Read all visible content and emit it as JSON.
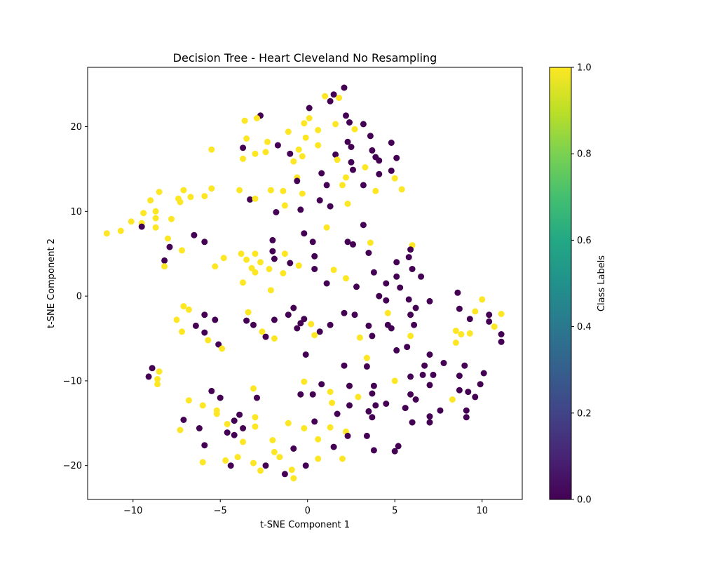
{
  "chart_data": {
    "type": "scatter",
    "title": "Decision Tree - Heart Cleveland No Resampling",
    "xlabel": "t-SNE Component 1",
    "ylabel": "t-SNE Component 2",
    "xlim": [
      -12.6,
      12.3
    ],
    "ylim": [
      -24.0,
      27.0
    ],
    "xticks": [
      -10,
      -5,
      0,
      5,
      10
    ],
    "yticks": [
      -20,
      -10,
      0,
      10,
      20
    ],
    "grid": false,
    "colorbar": {
      "label": "Class Labels",
      "range": [
        0.0,
        1.0
      ],
      "ticks": [
        "0.0",
        "0.2",
        "0.4",
        "0.6",
        "0.8",
        "1.0"
      ],
      "colormap": "viridis"
    },
    "class_colors": {
      "0": "#440154",
      "1": "#fde725"
    },
    "points": [
      [
        1.0,
        23.6,
        1
      ],
      [
        1.5,
        23.8,
        0
      ],
      [
        2.1,
        24.6,
        0
      ],
      [
        1.3,
        23.0,
        0
      ],
      [
        1.8,
        23.4,
        1
      ],
      [
        -2.7,
        21.3,
        0
      ],
      [
        -3.6,
        20.7,
        1
      ],
      [
        -2.9,
        21.0,
        1
      ],
      [
        -1.1,
        19.4,
        1
      ],
      [
        -0.2,
        20.4,
        1
      ],
      [
        0.1,
        21.0,
        1
      ],
      [
        0.6,
        19.6,
        1
      ],
      [
        0.1,
        22.2,
        0
      ],
      [
        2.2,
        21.3,
        0
      ],
      [
        2.4,
        20.5,
        0
      ],
      [
        1.6,
        20.3,
        1
      ],
      [
        3.2,
        20.3,
        0
      ],
      [
        2.7,
        19.7,
        1
      ],
      [
        3.6,
        18.9,
        0
      ],
      [
        4.8,
        18.1,
        0
      ],
      [
        -3.5,
        18.6,
        1
      ],
      [
        -2.3,
        18.2,
        1
      ],
      [
        -1.7,
        17.8,
        0
      ],
      [
        -0.5,
        17.3,
        1
      ],
      [
        -0.1,
        18.7,
        1
      ],
      [
        0.6,
        17.8,
        1
      ],
      [
        2.3,
        18.2,
        0
      ],
      [
        2.5,
        17.6,
        0
      ],
      [
        3.7,
        17.2,
        0
      ],
      [
        3.9,
        16.4,
        0
      ],
      [
        -5.5,
        17.3,
        1
      ],
      [
        -3.7,
        17.5,
        0
      ],
      [
        -3.0,
        16.8,
        1
      ],
      [
        -2.4,
        17.0,
        1
      ],
      [
        -1.0,
        16.8,
        0
      ],
      [
        -0.8,
        15.9,
        1
      ],
      [
        -0.3,
        16.5,
        1
      ],
      [
        1.6,
        16.7,
        0
      ],
      [
        1.7,
        16.1,
        1
      ],
      [
        2.5,
        15.8,
        0
      ],
      [
        4.1,
        16.0,
        0
      ],
      [
        5.1,
        16.3,
        0
      ],
      [
        -3.7,
        16.2,
        1
      ],
      [
        0.8,
        14.5,
        0
      ],
      [
        2.6,
        14.9,
        0
      ],
      [
        3.3,
        15.2,
        1
      ],
      [
        4.1,
        14.4,
        0
      ],
      [
        4.8,
        14.8,
        0
      ],
      [
        -0.6,
        14.0,
        1
      ],
      [
        -0.6,
        13.6,
        0
      ],
      [
        1.1,
        13.1,
        0
      ],
      [
        2.0,
        13.1,
        1
      ],
      [
        2.2,
        14.0,
        1
      ],
      [
        3.2,
        13.1,
        0
      ],
      [
        5.0,
        13.9,
        1
      ],
      [
        5.4,
        12.6,
        1
      ],
      [
        -8.5,
        12.3,
        1
      ],
      [
        -7.1,
        12.5,
        1
      ],
      [
        -6.7,
        11.7,
        1
      ],
      [
        -7.4,
        11.5,
        1
      ],
      [
        -7.3,
        11.1,
        1
      ],
      [
        -5.9,
        11.8,
        1
      ],
      [
        -5.5,
        12.7,
        1
      ],
      [
        -3.9,
        12.5,
        1
      ],
      [
        -3.3,
        11.4,
        0
      ],
      [
        -3.0,
        11.5,
        1
      ],
      [
        -2.1,
        12.5,
        1
      ],
      [
        -1.4,
        12.4,
        1
      ],
      [
        -0.3,
        12.1,
        1
      ],
      [
        3.9,
        12.4,
        1
      ],
      [
        -9.0,
        11.3,
        1
      ],
      [
        -8.7,
        10.0,
        1
      ],
      [
        -9.4,
        9.8,
        1
      ],
      [
        -8.7,
        9.2,
        1
      ],
      [
        -10.1,
        8.8,
        1
      ],
      [
        -9.5,
        8.6,
        1
      ],
      [
        -9.5,
        8.2,
        0
      ],
      [
        -8.7,
        8.1,
        1
      ],
      [
        -7.8,
        9.1,
        1
      ],
      [
        -11.5,
        7.4,
        1
      ],
      [
        -10.7,
        7.7,
        1
      ],
      [
        -1.8,
        9.9,
        0
      ],
      [
        -1.3,
        10.7,
        1
      ],
      [
        -0.4,
        10.2,
        0
      ],
      [
        0.7,
        11.3,
        0
      ],
      [
        1.3,
        10.6,
        0
      ],
      [
        2.3,
        10.9,
        1
      ],
      [
        1.1,
        8.1,
        1
      ],
      [
        3.2,
        8.4,
        0
      ],
      [
        -6.5,
        7.2,
        0
      ],
      [
        -5.9,
        6.4,
        0
      ],
      [
        -8.0,
        6.8,
        1
      ],
      [
        -7.9,
        5.8,
        0
      ],
      [
        -7.2,
        5.4,
        1
      ],
      [
        -8.2,
        4.2,
        0
      ],
      [
        -8.2,
        3.5,
        1
      ],
      [
        -2.0,
        6.6,
        0
      ],
      [
        -0.2,
        7.4,
        0
      ],
      [
        0.3,
        6.4,
        0
      ],
      [
        2.3,
        6.4,
        0
      ],
      [
        2.6,
        6.1,
        0
      ],
      [
        3.6,
        6.3,
        1
      ],
      [
        6.0,
        6.0,
        1
      ],
      [
        5.9,
        5.5,
        0
      ],
      [
        -4.8,
        4.5,
        1
      ],
      [
        -5.3,
        3.5,
        1
      ],
      [
        -3.8,
        5.0,
        1
      ],
      [
        -3.5,
        4.3,
        1
      ],
      [
        -3.0,
        5.0,
        1
      ],
      [
        -2.0,
        5.3,
        0
      ],
      [
        -1.9,
        4.4,
        0
      ],
      [
        -1.3,
        5.0,
        1
      ],
      [
        -1.0,
        3.9,
        0
      ],
      [
        -0.5,
        3.6,
        1
      ],
      [
        -3.2,
        3.3,
        1
      ],
      [
        -3.0,
        2.8,
        1
      ],
      [
        -2.7,
        4.0,
        1
      ],
      [
        -2.2,
        3.2,
        1
      ],
      [
        -1.4,
        2.7,
        1
      ],
      [
        0.4,
        4.7,
        0
      ],
      [
        0.4,
        3.2,
        0
      ],
      [
        3.5,
        5.1,
        0
      ],
      [
        5.1,
        4.0,
        0
      ],
      [
        5.8,
        4.6,
        0
      ],
      [
        -3.7,
        1.6,
        1
      ],
      [
        -2.1,
        0.7,
        1
      ],
      [
        1.1,
        1.5,
        0
      ],
      [
        1.5,
        3.1,
        1
      ],
      [
        2.2,
        2.1,
        1
      ],
      [
        2.8,
        1.1,
        0
      ],
      [
        3.8,
        2.8,
        0
      ],
      [
        4.5,
        1.5,
        0
      ],
      [
        5.1,
        2.3,
        0
      ],
      [
        5.3,
        1.0,
        0
      ],
      [
        6.0,
        3.2,
        0
      ],
      [
        6.5,
        2.3,
        0
      ],
      [
        4.1,
        0.0,
        0
      ],
      [
        4.5,
        -0.5,
        0
      ],
      [
        5.8,
        -0.4,
        0
      ],
      [
        6.2,
        -1.4,
        0
      ],
      [
        7.0,
        -0.6,
        0
      ],
      [
        -7.1,
        -1.2,
        1
      ],
      [
        -6.8,
        -1.6,
        1
      ],
      [
        -7.5,
        -2.8,
        1
      ],
      [
        -7.2,
        -4.2,
        1
      ],
      [
        -5.9,
        -2.2,
        0
      ],
      [
        -5.3,
        -2.8,
        0
      ],
      [
        -6.4,
        -3.5,
        0
      ],
      [
        -5.9,
        -4.3,
        0
      ],
      [
        -5.7,
        -5.2,
        1
      ],
      [
        -5.1,
        -5.7,
        0
      ],
      [
        -4.9,
        -6.2,
        1
      ],
      [
        -3.4,
        -1.9,
        1
      ],
      [
        -3.5,
        -2.9,
        0
      ],
      [
        -3.1,
        -3.4,
        0
      ],
      [
        -2.6,
        -4.2,
        1
      ],
      [
        -2.4,
        -4.8,
        0
      ],
      [
        -1.9,
        -2.8,
        0
      ],
      [
        -1.9,
        -5.0,
        1
      ],
      [
        -1.1,
        -2.2,
        0
      ],
      [
        -0.8,
        -1.4,
        0
      ],
      [
        -0.6,
        -3.8,
        0
      ],
      [
        -0.4,
        -3.2,
        0
      ],
      [
        -0.2,
        -2.7,
        0
      ],
      [
        -0.1,
        -6.9,
        0
      ],
      [
        0.2,
        -3.3,
        1
      ],
      [
        0.4,
        -4.6,
        1
      ],
      [
        0.7,
        -4.2,
        0
      ],
      [
        1.3,
        -3.4,
        0
      ],
      [
        2.1,
        -2.0,
        0
      ],
      [
        2.7,
        -2.2,
        0
      ],
      [
        3.0,
        -4.9,
        1
      ],
      [
        3.5,
        -3.5,
        0
      ],
      [
        3.7,
        -4.7,
        0
      ],
      [
        4.6,
        -2.0,
        1
      ],
      [
        4.6,
        -3.4,
        0
      ],
      [
        4.8,
        -3.8,
        0
      ],
      [
        5.1,
        -6.4,
        0
      ],
      [
        5.7,
        -6.0,
        0
      ],
      [
        5.9,
        -2.2,
        0
      ],
      [
        5.9,
        -4.7,
        1
      ],
      [
        6.1,
        -3.4,
        0
      ],
      [
        8.6,
        0.4,
        0
      ],
      [
        8.7,
        -1.5,
        0
      ],
      [
        9.3,
        -2.7,
        0
      ],
      [
        9.6,
        -1.8,
        1
      ],
      [
        10.0,
        -0.4,
        1
      ],
      [
        10.4,
        -2.2,
        0
      ],
      [
        10.4,
        -3.0,
        0
      ],
      [
        10.7,
        -3.6,
        1
      ],
      [
        11.1,
        -2.1,
        1
      ],
      [
        11.1,
        -4.5,
        0
      ],
      [
        11.1,
        -5.4,
        0
      ],
      [
        8.5,
        -4.1,
        1
      ],
      [
        8.8,
        -4.5,
        1
      ],
      [
        9.3,
        -4.4,
        1
      ],
      [
        8.5,
        -5.5,
        1
      ],
      [
        -8.9,
        -8.5,
        0
      ],
      [
        -8.5,
        -8.9,
        1
      ],
      [
        -9.1,
        -9.5,
        0
      ],
      [
        -8.6,
        -9.8,
        1
      ],
      [
        -8.6,
        -10.4,
        1
      ],
      [
        -0.2,
        -10.1,
        1
      ],
      [
        -0.4,
        -11.6,
        0
      ],
      [
        0.3,
        -11.6,
        0
      ],
      [
        0.8,
        -10.4,
        0
      ],
      [
        1.3,
        -11.3,
        1
      ],
      [
        2.1,
        -8.2,
        0
      ],
      [
        2.4,
        -10.6,
        0
      ],
      [
        3.4,
        -7.3,
        1
      ],
      [
        3.4,
        -8.3,
        0
      ],
      [
        3.8,
        -10.6,
        0
      ],
      [
        3.7,
        -11.5,
        0
      ],
      [
        5.0,
        -10.0,
        1
      ],
      [
        5.9,
        -9.5,
        0
      ],
      [
        5.9,
        -11.6,
        0
      ],
      [
        6.2,
        -12.2,
        0
      ],
      [
        6.7,
        -8.2,
        0
      ],
      [
        6.6,
        -9.3,
        0
      ],
      [
        7.0,
        -6.9,
        0
      ],
      [
        7.0,
        -10.5,
        0
      ],
      [
        7.2,
        -9.3,
        0
      ],
      [
        7.8,
        -7.9,
        0
      ],
      [
        8.7,
        -9.4,
        0
      ],
      [
        9.0,
        -8.2,
        0
      ],
      [
        8.7,
        -11.1,
        0
      ],
      [
        9.2,
        -11.3,
        0
      ],
      [
        10.1,
        -9.1,
        0
      ],
      [
        9.9,
        -10.4,
        0
      ],
      [
        9.6,
        -11.9,
        0
      ],
      [
        8.3,
        -12.2,
        1
      ],
      [
        -6.8,
        -12.3,
        1
      ],
      [
        -5.5,
        -11.2,
        0
      ],
      [
        -5.0,
        -12.0,
        0
      ],
      [
        -7.1,
        -14.6,
        0
      ],
      [
        -6.0,
        -12.9,
        1
      ],
      [
        -5.2,
        -13.5,
        1
      ],
      [
        -5.2,
        -13.9,
        1
      ],
      [
        -4.6,
        -15.1,
        1
      ],
      [
        -4.2,
        -14.7,
        0
      ],
      [
        -3.9,
        -14.0,
        0
      ],
      [
        -3.1,
        -10.9,
        1
      ],
      [
        -2.9,
        -12.0,
        0
      ],
      [
        -3.0,
        -14.3,
        1
      ],
      [
        -3.7,
        -15.6,
        0
      ],
      [
        -3.0,
        -15.4,
        1
      ],
      [
        -4.6,
        -16.1,
        0
      ],
      [
        -4.2,
        -16.4,
        0
      ],
      [
        -3.7,
        -17.2,
        1
      ],
      [
        -2.0,
        -17.0,
        1
      ],
      [
        -1.1,
        -15.0,
        1
      ],
      [
        -0.2,
        -15.6,
        1
      ],
      [
        0.4,
        -14.8,
        0
      ],
      [
        0.6,
        -16.9,
        1
      ],
      [
        1.4,
        -12.6,
        1
      ],
      [
        1.7,
        -13.9,
        0
      ],
      [
        2.4,
        -12.9,
        0
      ],
      [
        2.9,
        -11.9,
        1
      ],
      [
        3.5,
        -13.6,
        0
      ],
      [
        3.7,
        -14.3,
        0
      ],
      [
        3.9,
        -12.9,
        0
      ],
      [
        4.5,
        -12.7,
        0
      ],
      [
        5.6,
        -13.2,
        0
      ],
      [
        6.0,
        -14.9,
        0
      ],
      [
        7.0,
        -14.2,
        0
      ],
      [
        7.0,
        -14.9,
        0
      ],
      [
        7.6,
        -13.5,
        0
      ],
      [
        9.1,
        -13.5,
        0
      ],
      [
        9.1,
        -14.3,
        0
      ],
      [
        1.3,
        -15.5,
        1
      ],
      [
        2.2,
        -16.0,
        1
      ],
      [
        2.3,
        -16.5,
        0
      ],
      [
        3.4,
        -16.5,
        0
      ],
      [
        1.5,
        -17.8,
        0
      ],
      [
        3.8,
        -18.2,
        0
      ],
      [
        5.0,
        -18.3,
        0
      ],
      [
        5.2,
        -17.7,
        0
      ],
      [
        -7.3,
        -15.8,
        1
      ],
      [
        -6.2,
        -15.6,
        0
      ],
      [
        -5.9,
        -17.6,
        0
      ],
      [
        -6.0,
        -19.6,
        1
      ],
      [
        -4.7,
        -19.4,
        1
      ],
      [
        -4.4,
        -20.0,
        0
      ],
      [
        -4.0,
        -19.0,
        1
      ],
      [
        -3.1,
        -19.7,
        1
      ],
      [
        -2.7,
        -20.6,
        1
      ],
      [
        -2.4,
        -20.0,
        0
      ],
      [
        -1.9,
        -18.4,
        1
      ],
      [
        -1.6,
        -19.0,
        1
      ],
      [
        -1.3,
        -21.0,
        0
      ],
      [
        -0.9,
        -20.5,
        1
      ],
      [
        -0.8,
        -21.5,
        1
      ],
      [
        -0.8,
        -18.0,
        0
      ],
      [
        -0.1,
        -20.0,
        0
      ],
      [
        0.6,
        -19.2,
        1
      ],
      [
        2.0,
        -19.2,
        1
      ]
    ]
  }
}
